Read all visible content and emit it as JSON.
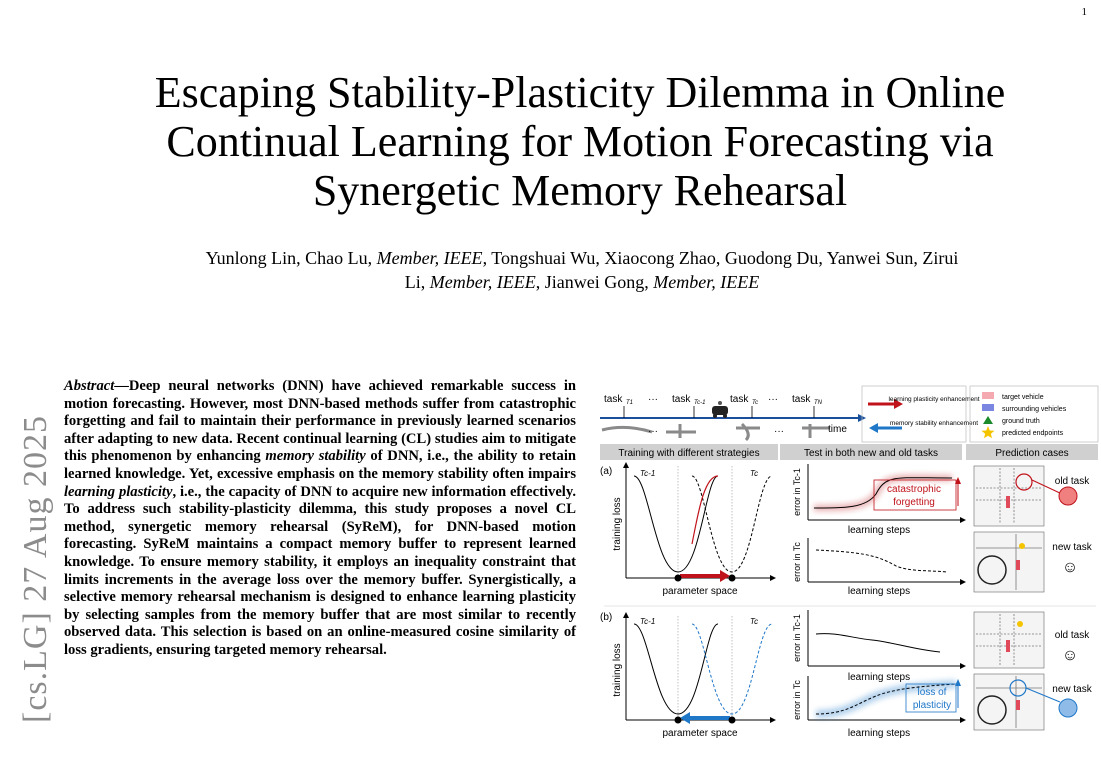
{
  "page_number": "1",
  "title_lines": [
    "Escaping Stability-Plasticity Dilemma in Online",
    "Continual Learning for Motion Forecasting via",
    "Synergetic Memory Rehearsal"
  ],
  "authors": {
    "line1_a": "Yunlong Lin, Chao Lu, ",
    "member1": "Member, IEEE",
    "line1_b": ", Tongshuai Wu, Xiaocong Zhao, Guodong Du, Yanwei Sun, Zirui",
    "line2_a": "Li, ",
    "member2": "Member, IEEE",
    "line2_b": ", Jianwei Gong, ",
    "member3": "Member, IEEE"
  },
  "arxiv_stamp": "[cs.LG]  27 Aug 2025",
  "abstract": {
    "label": "Abstract",
    "p1": "—Deep neural networks (DNN) have achieved remarkable success in motion forecasting. However, most DNN-based methods suffer from catastrophic forgetting and fail to maintain their performance in previously learned scenarios after adapting to new data. Recent continual learning (CL) studies aim to mitigate this phenomenon by enhancing ",
    "em1": "memory stability",
    "p2": " of DNN, i.e., the ability to retain learned knowledge. Yet, excessive emphasis on the memory stability often impairs ",
    "em2": "learning plasticity",
    "p3": ", i.e., the capacity of DNN to acquire new information effectively. To address such stability-plasticity dilemma, this study proposes a novel CL method, synergetic memory rehearsal (SyReM), for DNN-based motion forecasting. SyReM maintains a compact memory buffer to represent learned knowledge. To ensure memory stability, it employs an inequality constraint that limits increments in the average loss over the memory buffer. Synergistically, a selective memory rehearsal mechanism is designed to enhance learning plasticity by selecting samples from the memory buffer that are most similar to recently observed data. This selection is based on an online-measured cosine similarity of loss gradients, ensuring targeted memory rehearsal."
  },
  "figure": {
    "tasks": [
      "task",
      "task",
      "task",
      "task"
    ],
    "task_subs": [
      "T1",
      "Tc-1",
      "Tc",
      "TN"
    ],
    "ellipsis": "···",
    "time_label": "time",
    "legend": {
      "plasticity": "learning plasticity enhancement",
      "stability": "memory stability enhancement",
      "target_vehicle": "target vehicle",
      "surrounding_vehicles": "surrounding vehicles",
      "ground_truth": "ground truth",
      "predicted_endpoints": "predicted endpoints"
    },
    "section_headers": [
      "Training with different strategies",
      "Test in both new and old tasks",
      "Prediction cases"
    ],
    "panel_a": "(a)",
    "panel_b": "(b)",
    "training_loss": "training loss",
    "parameter_space": "parameter space",
    "tc_minus_1": "Tc-1",
    "tc": "Tc",
    "error_in_tc1": "error in Tc-1",
    "error_in_tc": "error in Tc",
    "learning_steps": "learning steps",
    "catastrophic": "catastrophic",
    "forgetting": "forgetting",
    "loss_of": "loss of",
    "plasticity": "plasticity",
    "old_task": "old task",
    "new_task": "new task",
    "face_happy": "☺",
    "face_sad": "☹",
    "colors": {
      "red": "#c0121a",
      "blue": "#1f77c8",
      "gray_header": "#d0d0d0"
    }
  }
}
